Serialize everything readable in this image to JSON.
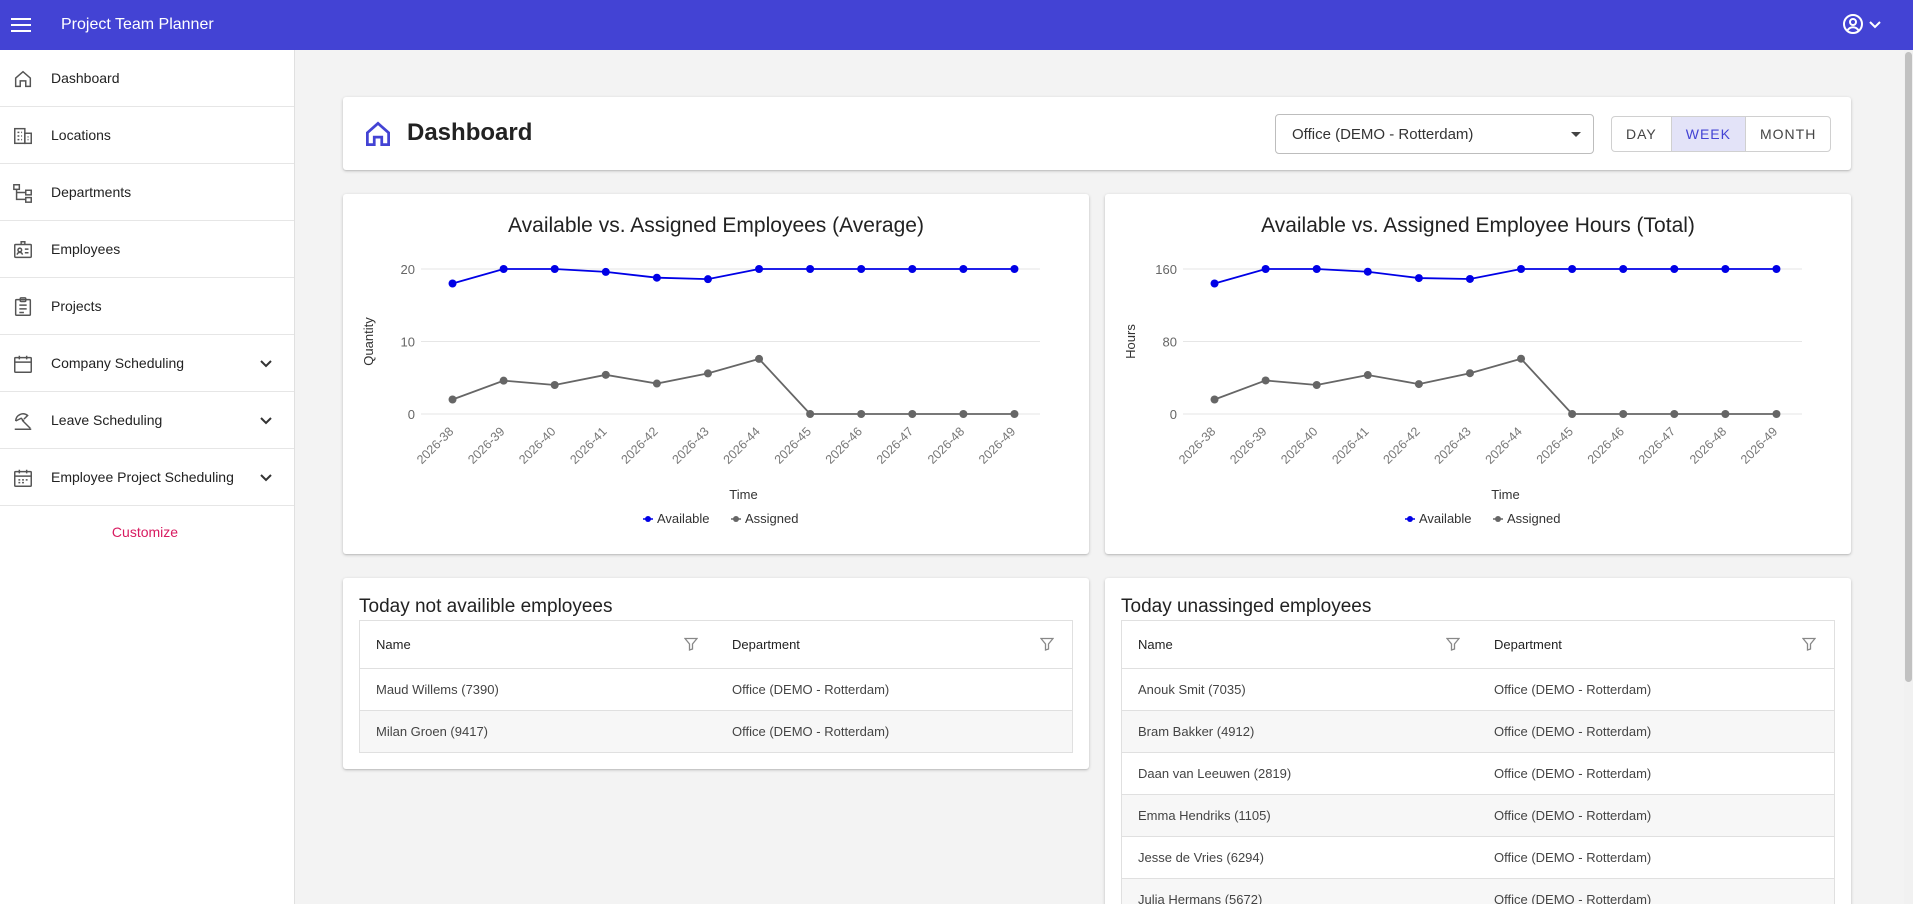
{
  "app": {
    "title": "Project Team Planner"
  },
  "sidebar": {
    "items": [
      {
        "label": "Dashboard",
        "icon": "home-icon"
      },
      {
        "label": "Locations",
        "icon": "building-icon"
      },
      {
        "label": "Departments",
        "icon": "hierarchy-icon"
      },
      {
        "label": "Employees",
        "icon": "badge-icon"
      },
      {
        "label": "Projects",
        "icon": "clipboard-icon"
      },
      {
        "label": "Company Scheduling",
        "icon": "calendar-icon",
        "expandable": true
      },
      {
        "label": "Leave Scheduling",
        "icon": "beach-icon",
        "expandable": true
      },
      {
        "label": "Employee Project Scheduling",
        "icon": "calendar-icon",
        "expandable": true
      }
    ],
    "customize": "Customize"
  },
  "header": {
    "title": "Dashboard",
    "location_select": "Office (DEMO - Rotterdam)",
    "range_buttons": [
      "DAY",
      "WEEK",
      "MONTH"
    ],
    "active_range": "WEEK"
  },
  "colors": {
    "accent": "#4343d4",
    "available": "#0000e6",
    "assigned": "#666666",
    "link": "#d81b60"
  },
  "chart_data": [
    {
      "type": "line",
      "title": "Available vs. Assigned Employees (Average)",
      "xlabel": "Time",
      "ylabel": "Quantity",
      "ylim": [
        0,
        20
      ],
      "yticks": [
        0,
        10,
        20
      ],
      "categories": [
        "2026-38",
        "2026-39",
        "2026-40",
        "2026-41",
        "2026-42",
        "2026-43",
        "2026-44",
        "2026-45",
        "2026-46",
        "2026-47",
        "2026-48",
        "2026-49"
      ],
      "series": [
        {
          "name": "Available",
          "values": [
            18,
            20,
            20,
            19.6,
            18.8,
            18.6,
            20,
            20,
            20,
            20,
            20,
            20
          ]
        },
        {
          "name": "Assigned",
          "values": [
            2,
            4.6,
            4,
            5.4,
            4.2,
            5.6,
            7.6,
            0,
            0,
            0,
            0,
            0
          ]
        }
      ],
      "legend": "bottom",
      "grid": true
    },
    {
      "type": "line",
      "title": "Available vs. Assigned Employee Hours (Total)",
      "xlabel": "Time",
      "ylabel": "Hours",
      "ylim": [
        0,
        160
      ],
      "yticks": [
        0,
        80,
        160
      ],
      "categories": [
        "2026-38",
        "2026-39",
        "2026-40",
        "2026-41",
        "2026-42",
        "2026-43",
        "2026-44",
        "2026-45",
        "2026-46",
        "2026-47",
        "2026-48",
        "2026-49"
      ],
      "series": [
        {
          "name": "Available",
          "values": [
            144,
            160,
            160,
            157,
            150,
            149,
            160,
            160,
            160,
            160,
            160,
            160
          ]
        },
        {
          "name": "Assigned",
          "values": [
            16,
            37,
            32,
            43,
            33,
            45,
            61,
            0,
            0,
            0,
            0,
            0
          ]
        }
      ],
      "legend": "bottom",
      "grid": true
    }
  ],
  "not_available": {
    "title": "Today not availible employees",
    "columns": [
      "Name",
      "Department"
    ],
    "rows": [
      [
        "Maud Willems (7390)",
        "Office (DEMO - Rotterdam)"
      ],
      [
        "Milan Groen (9417)",
        "Office (DEMO - Rotterdam)"
      ]
    ]
  },
  "unassigned": {
    "title": "Today unassinged employees",
    "columns": [
      "Name",
      "Department"
    ],
    "rows": [
      [
        "Anouk Smit (7035)",
        "Office (DEMO - Rotterdam)"
      ],
      [
        "Bram Bakker (4912)",
        "Office (DEMO - Rotterdam)"
      ],
      [
        "Daan van Leeuwen (2819)",
        "Office (DEMO - Rotterdam)"
      ],
      [
        "Emma Hendriks (1105)",
        "Office (DEMO - Rotterdam)"
      ],
      [
        "Jesse de Vries (6294)",
        "Office (DEMO - Rotterdam)"
      ],
      [
        "Julia Hermans (5672)",
        "Office (DEMO - Rotterdam)"
      ]
    ]
  }
}
